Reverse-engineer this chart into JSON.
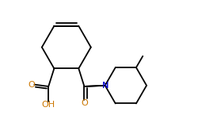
{
  "bg_color": "#ffffff",
  "line_color": "#000000",
  "atom_colors": {
    "O": "#cc7700",
    "N": "#0000cc",
    "C": "#000000"
  },
  "font_size_atom": 8.0,
  "line_width": 1.3,
  "fig_size": [
    2.51,
    1.5
  ],
  "dpi": 100,
  "xlim": [
    0,
    10.5
  ],
  "ylim": [
    0,
    6.3
  ]
}
